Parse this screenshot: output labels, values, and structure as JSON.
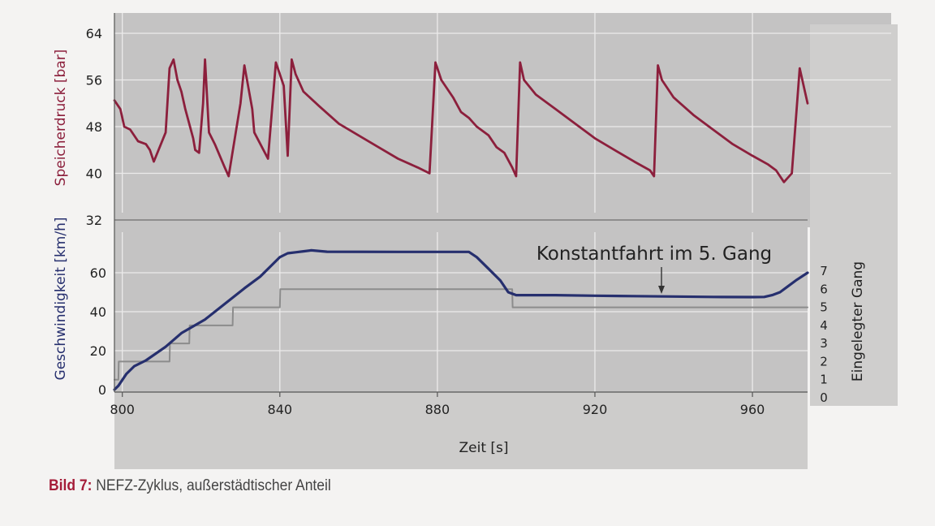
{
  "colors": {
    "pressure": "#8c1f3c",
    "speed": "#262f6e",
    "gear": "#8c8c8c",
    "plot_bg": "#c4c3c3",
    "grid": "#ecebeb",
    "text": "#222222"
  },
  "caption": {
    "label": "Bild 7:",
    "text": "NEFZ-Zyklus, außerstädtischer Anteil"
  },
  "chart_data": [
    {
      "type": "line",
      "name": "upper",
      "ylabel": "Speicherdruck [bar]",
      "ylim": [
        32,
        68
      ],
      "yticks": [
        64,
        56,
        48,
        40,
        32
      ],
      "xlim": [
        798,
        974
      ],
      "grid": true,
      "series": [
        {
          "name": "Speicherdruck",
          "x": [
            798,
            799.5,
            800.5,
            802,
            804,
            806,
            807,
            808,
            811,
            812,
            813,
            814,
            815,
            816,
            818,
            818.5,
            819.5,
            820.5,
            821,
            822,
            823.5,
            826,
            827,
            830,
            831,
            833,
            833.5,
            837,
            839,
            841,
            842,
            843,
            844,
            846,
            850,
            855,
            860,
            865,
            870,
            875,
            878,
            879.5,
            881,
            884,
            886,
            888,
            890,
            893,
            895,
            897,
            899,
            900,
            901,
            902,
            905,
            910,
            915,
            920,
            925,
            930,
            934,
            935,
            936,
            937,
            940,
            945,
            950,
            955,
            960,
            964,
            966,
            968,
            970,
            972,
            974
          ],
          "y": [
            52.5,
            51,
            48,
            47.5,
            45.5,
            45,
            44,
            42,
            47,
            58,
            59.5,
            56,
            54,
            51,
            46,
            44,
            43.5,
            52,
            59.5,
            47,
            45,
            41,
            39.5,
            52,
            58.5,
            51,
            47,
            42.5,
            59,
            55,
            43,
            59.5,
            57,
            54,
            51.5,
            48.5,
            46.5,
            44.5,
            42.5,
            41,
            40,
            59,
            56,
            53,
            50.5,
            49.5,
            48,
            46.5,
            44.5,
            43.5,
            41,
            39.5,
            59,
            56,
            53.5,
            51,
            48.5,
            46,
            44,
            42,
            40.5,
            39.5,
            58.5,
            56,
            53,
            50,
            47.5,
            45,
            43,
            41.5,
            40.5,
            38.5,
            40,
            58,
            52
          ]
        }
      ]
    },
    {
      "type": "line",
      "name": "lower",
      "xlabel": "Zeit [s]",
      "ylabel": "Geschwindigkeit [km/h]",
      "y2label": "Eingelegter Gang",
      "ylim": [
        0,
        80
      ],
      "y2lim": [
        0,
        8
      ],
      "xlim": [
        798,
        974
      ],
      "xticks": [
        800,
        840,
        880,
        920,
        960
      ],
      "yticks": [
        60,
        40,
        20,
        0
      ],
      "y2ticks": [
        7,
        6,
        5,
        4,
        3,
        2,
        1,
        0
      ],
      "grid": true,
      "annotation": "Konstantfahrt im 5. Gang",
      "series": [
        {
          "name": "Geschwindigkeit",
          "x": [
            798,
            799,
            801,
            803,
            806,
            811,
            815,
            821,
            826,
            831,
            835,
            838,
            840,
            842,
            844,
            846,
            848,
            852,
            870,
            888,
            890,
            893,
            896,
            898,
            900,
            910,
            920,
            930,
            940,
            950,
            960,
            963,
            965,
            967,
            969,
            971,
            974
          ],
          "y": [
            0,
            2,
            8,
            12,
            15,
            22,
            29,
            36,
            44,
            52,
            58,
            64,
            68,
            70,
            70.5,
            71,
            71.5,
            70.8,
            70.7,
            70.7,
            68,
            62,
            56,
            50,
            48.5,
            48.5,
            48.2,
            48,
            47.8,
            47.6,
            47.5,
            47.6,
            48.5,
            50,
            53,
            56,
            60
          ]
        },
        {
          "name": "Eingelegter Gang",
          "x": [
            798,
            799,
            799.1,
            812,
            812.1,
            817,
            817.1,
            828,
            828.1,
            838,
            838.1,
            840,
            840.1,
            899,
            899.1,
            974
          ],
          "y": [
            1,
            1,
            2,
            2,
            3,
            3,
            4,
            4,
            5,
            5,
            5,
            5,
            6,
            6,
            5,
            5
          ]
        }
      ]
    }
  ]
}
